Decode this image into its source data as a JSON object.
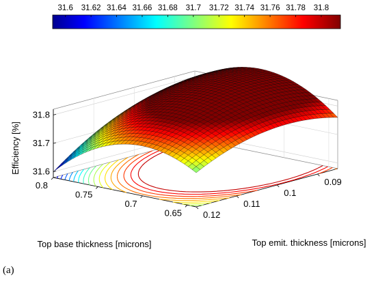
{
  "caption": "(a)",
  "chart_data": {
    "type": "surface",
    "zlabel": "Efficiency [%]",
    "xlabel": "Top base thickness [microns]",
    "ylabel": "Top emit. thickness [microns]",
    "x_ticks": [
      "0.8",
      "0.75",
      "0.7",
      "0.65"
    ],
    "y_ticks": [
      "0.09",
      "0.1",
      "0.11",
      "0.12"
    ],
    "z_ticks": [
      "31.6",
      "31.7",
      "31.8"
    ],
    "xlim": [
      0.64,
      0.8
    ],
    "ylim": [
      0.085,
      0.12
    ],
    "zlim": [
      31.58,
      31.82
    ],
    "colorbar": {
      "ticks": [
        "31.6",
        "31.62",
        "31.64",
        "31.66",
        "31.68",
        "31.7",
        "31.72",
        "31.74",
        "31.76",
        "31.78",
        "31.8"
      ],
      "range": [
        31.59,
        31.815
      ],
      "colormap": "jet",
      "location": "top"
    },
    "surface_samples": [
      {
        "base": 0.8,
        "emit": 0.12,
        "efficiency": 31.6
      },
      {
        "base": 0.8,
        "emit": 0.085,
        "efficiency": 31.79
      },
      {
        "base": 0.64,
        "emit": 0.12,
        "efficiency": 31.7
      },
      {
        "base": 0.64,
        "emit": 0.085,
        "efficiency": 31.73
      },
      {
        "base": 0.72,
        "emit": 0.1,
        "efficiency": 31.81
      }
    ],
    "grid": true,
    "contour_projection": true
  }
}
